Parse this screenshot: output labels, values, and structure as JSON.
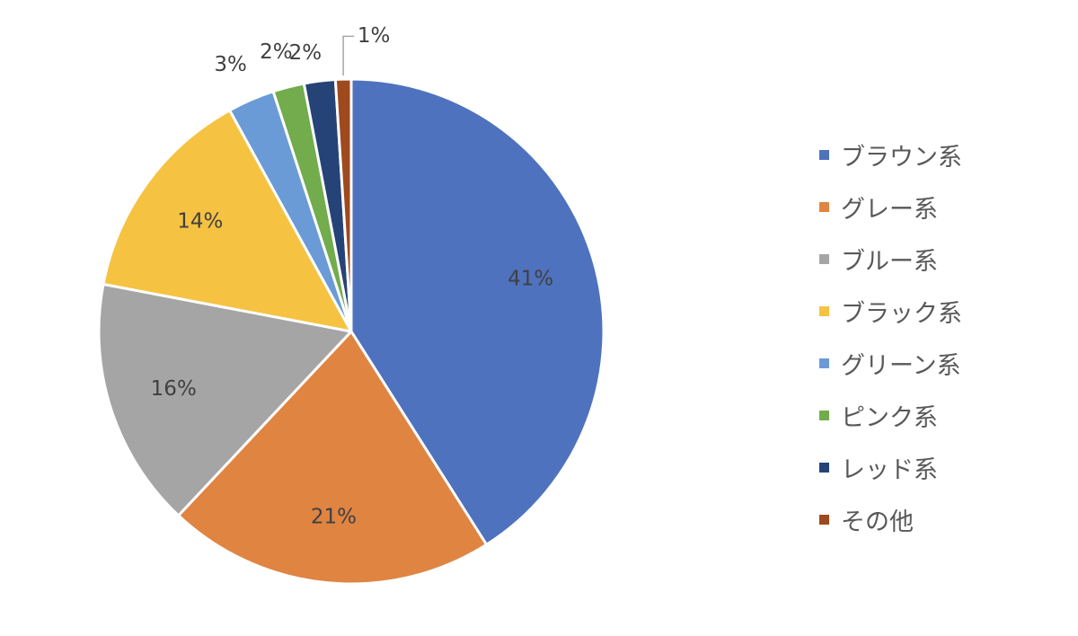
{
  "chart_data": {
    "type": "pie",
    "title": "",
    "legend_position": "right",
    "slices": [
      {
        "name": "ブラウン系",
        "value": 41,
        "label": "41%",
        "color": "#4e72be"
      },
      {
        "name": "グレー系",
        "value": 21,
        "label": "21%",
        "color": "#e08442"
      },
      {
        "name": "ブルー系",
        "value": 16,
        "label": "16%",
        "color": "#a5a5a5"
      },
      {
        "name": "ブラック系",
        "value": 14,
        "label": "14%",
        "color": "#f5c242"
      },
      {
        "name": "グリーン系",
        "value": 3,
        "label": "3%",
        "color": "#6a9bd6"
      },
      {
        "name": "ピンク系",
        "value": 2,
        "label": "2%",
        "color": "#72ac4d"
      },
      {
        "name": "レッド系",
        "value": 2,
        "label": "2%",
        "color": "#264378"
      },
      {
        "name": "その他",
        "value": 1,
        "label": "1%",
        "color": "#9e4a1e"
      }
    ]
  }
}
